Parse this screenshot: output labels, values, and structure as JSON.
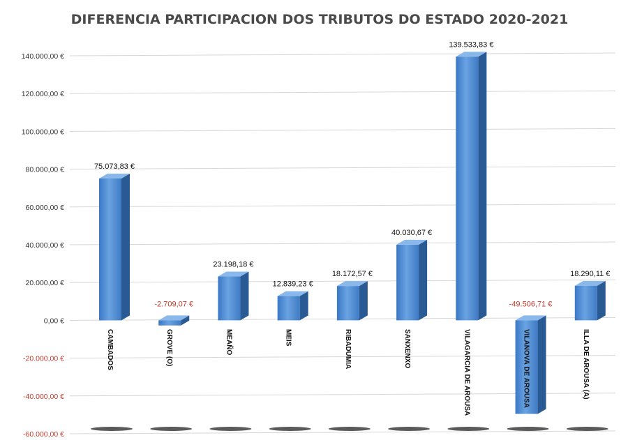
{
  "chart_data": {
    "type": "bar",
    "title": "DIFERENCIA PARTICIPACION DOS TRIBUTOS DO ESTADO 2020-2021",
    "xlabel": "",
    "ylabel": "",
    "ylim": [
      -60000,
      140000
    ],
    "grid": true,
    "legend": "none",
    "bar_color": "#4a86d0",
    "positive_label_color": "#111111",
    "negative_label_color": "#c0392b",
    "yticks": [
      {
        "value": 140000,
        "label": "140.000,00 €"
      },
      {
        "value": 120000,
        "label": "120.000,00 €"
      },
      {
        "value": 100000,
        "label": "100.000,00 €"
      },
      {
        "value": 80000,
        "label": "80.000,00 €"
      },
      {
        "value": 60000,
        "label": "60.000,00 €"
      },
      {
        "value": 40000,
        "label": "40.000,00 €"
      },
      {
        "value": 20000,
        "label": "20.000,00 €"
      },
      {
        "value": 0,
        "label": "0,00 €"
      },
      {
        "value": -20000,
        "label": "-20.000,00 €"
      },
      {
        "value": -40000,
        "label": "-40.000,00 €"
      },
      {
        "value": -60000,
        "label": "-60.000,00 €"
      }
    ],
    "categories": [
      "CAMBADOS",
      "GROVE (O)",
      "MEAÑO",
      "MEIS",
      "RIBADUMIA",
      "SANXENXO",
      "VILAGARCIA DE AROUSA",
      "VILANOVA DE AROUSA",
      "ILLA DE AROUSA (A)"
    ],
    "values": [
      75073.83,
      -2709.07,
      23198.18,
      12839.23,
      18172.57,
      40030.67,
      139533.83,
      -49506.71,
      18290.11
    ],
    "data_labels": [
      "75.073,83 €",
      "-2.709,07 €",
      "23.198,18 €",
      "12.839,23 €",
      "18.172,57 €",
      "40.030,67 €",
      "139.533,83 €",
      "-49.506,71 €",
      "18.290,11 €"
    ]
  }
}
